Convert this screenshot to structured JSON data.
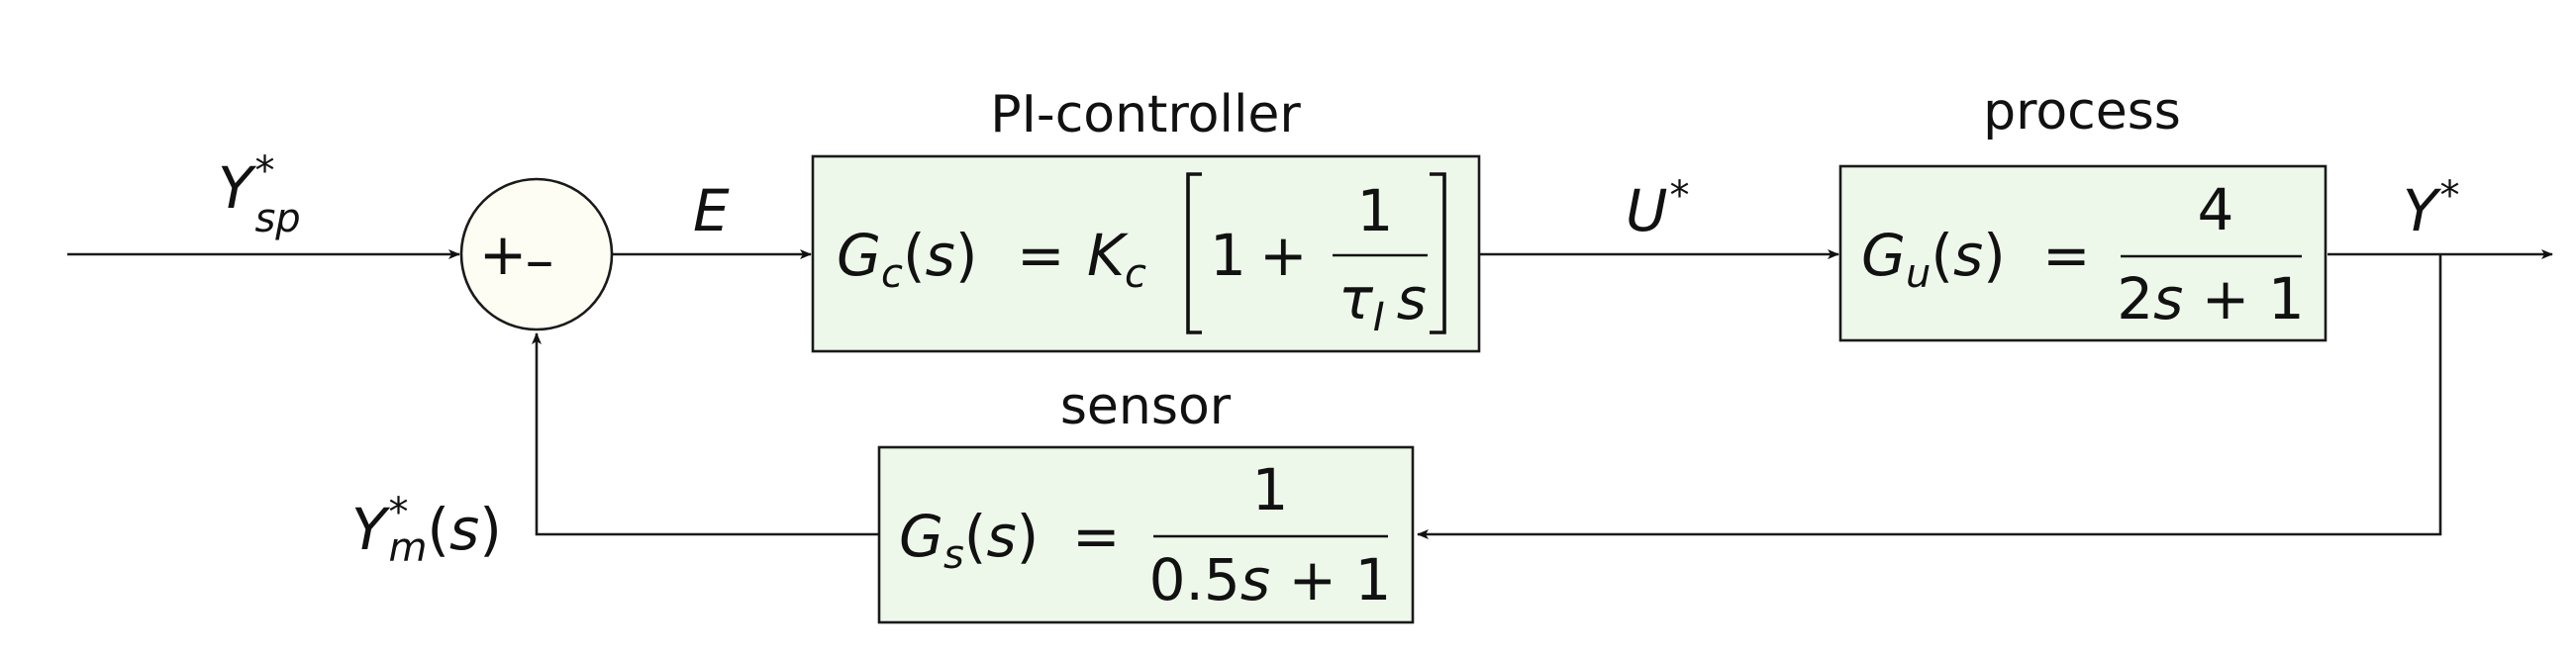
{
  "labels": {
    "setpoint": "Y*sp",
    "error": "E",
    "manipulated": "U*",
    "output": "Y*",
    "measured": "Y*m(s)"
  },
  "summing_junction": {
    "plus": "+",
    "minus": "–"
  },
  "blocks": {
    "controller": {
      "caption": "PI-controller",
      "lhs": "Gc(s)",
      "equals": "=",
      "gain": "Kc",
      "one": "1",
      "plus": "+",
      "numerator": "1",
      "denominator": "τI s"
    },
    "process": {
      "caption": "process",
      "lhs": "Gu(s)",
      "equals": "=",
      "numerator": "4",
      "denominator": "2s + 1"
    },
    "sensor": {
      "caption": "sensor",
      "lhs": "Gs(s)",
      "equals": "=",
      "numerator": "1",
      "denominator": "0.5s + 1"
    }
  }
}
